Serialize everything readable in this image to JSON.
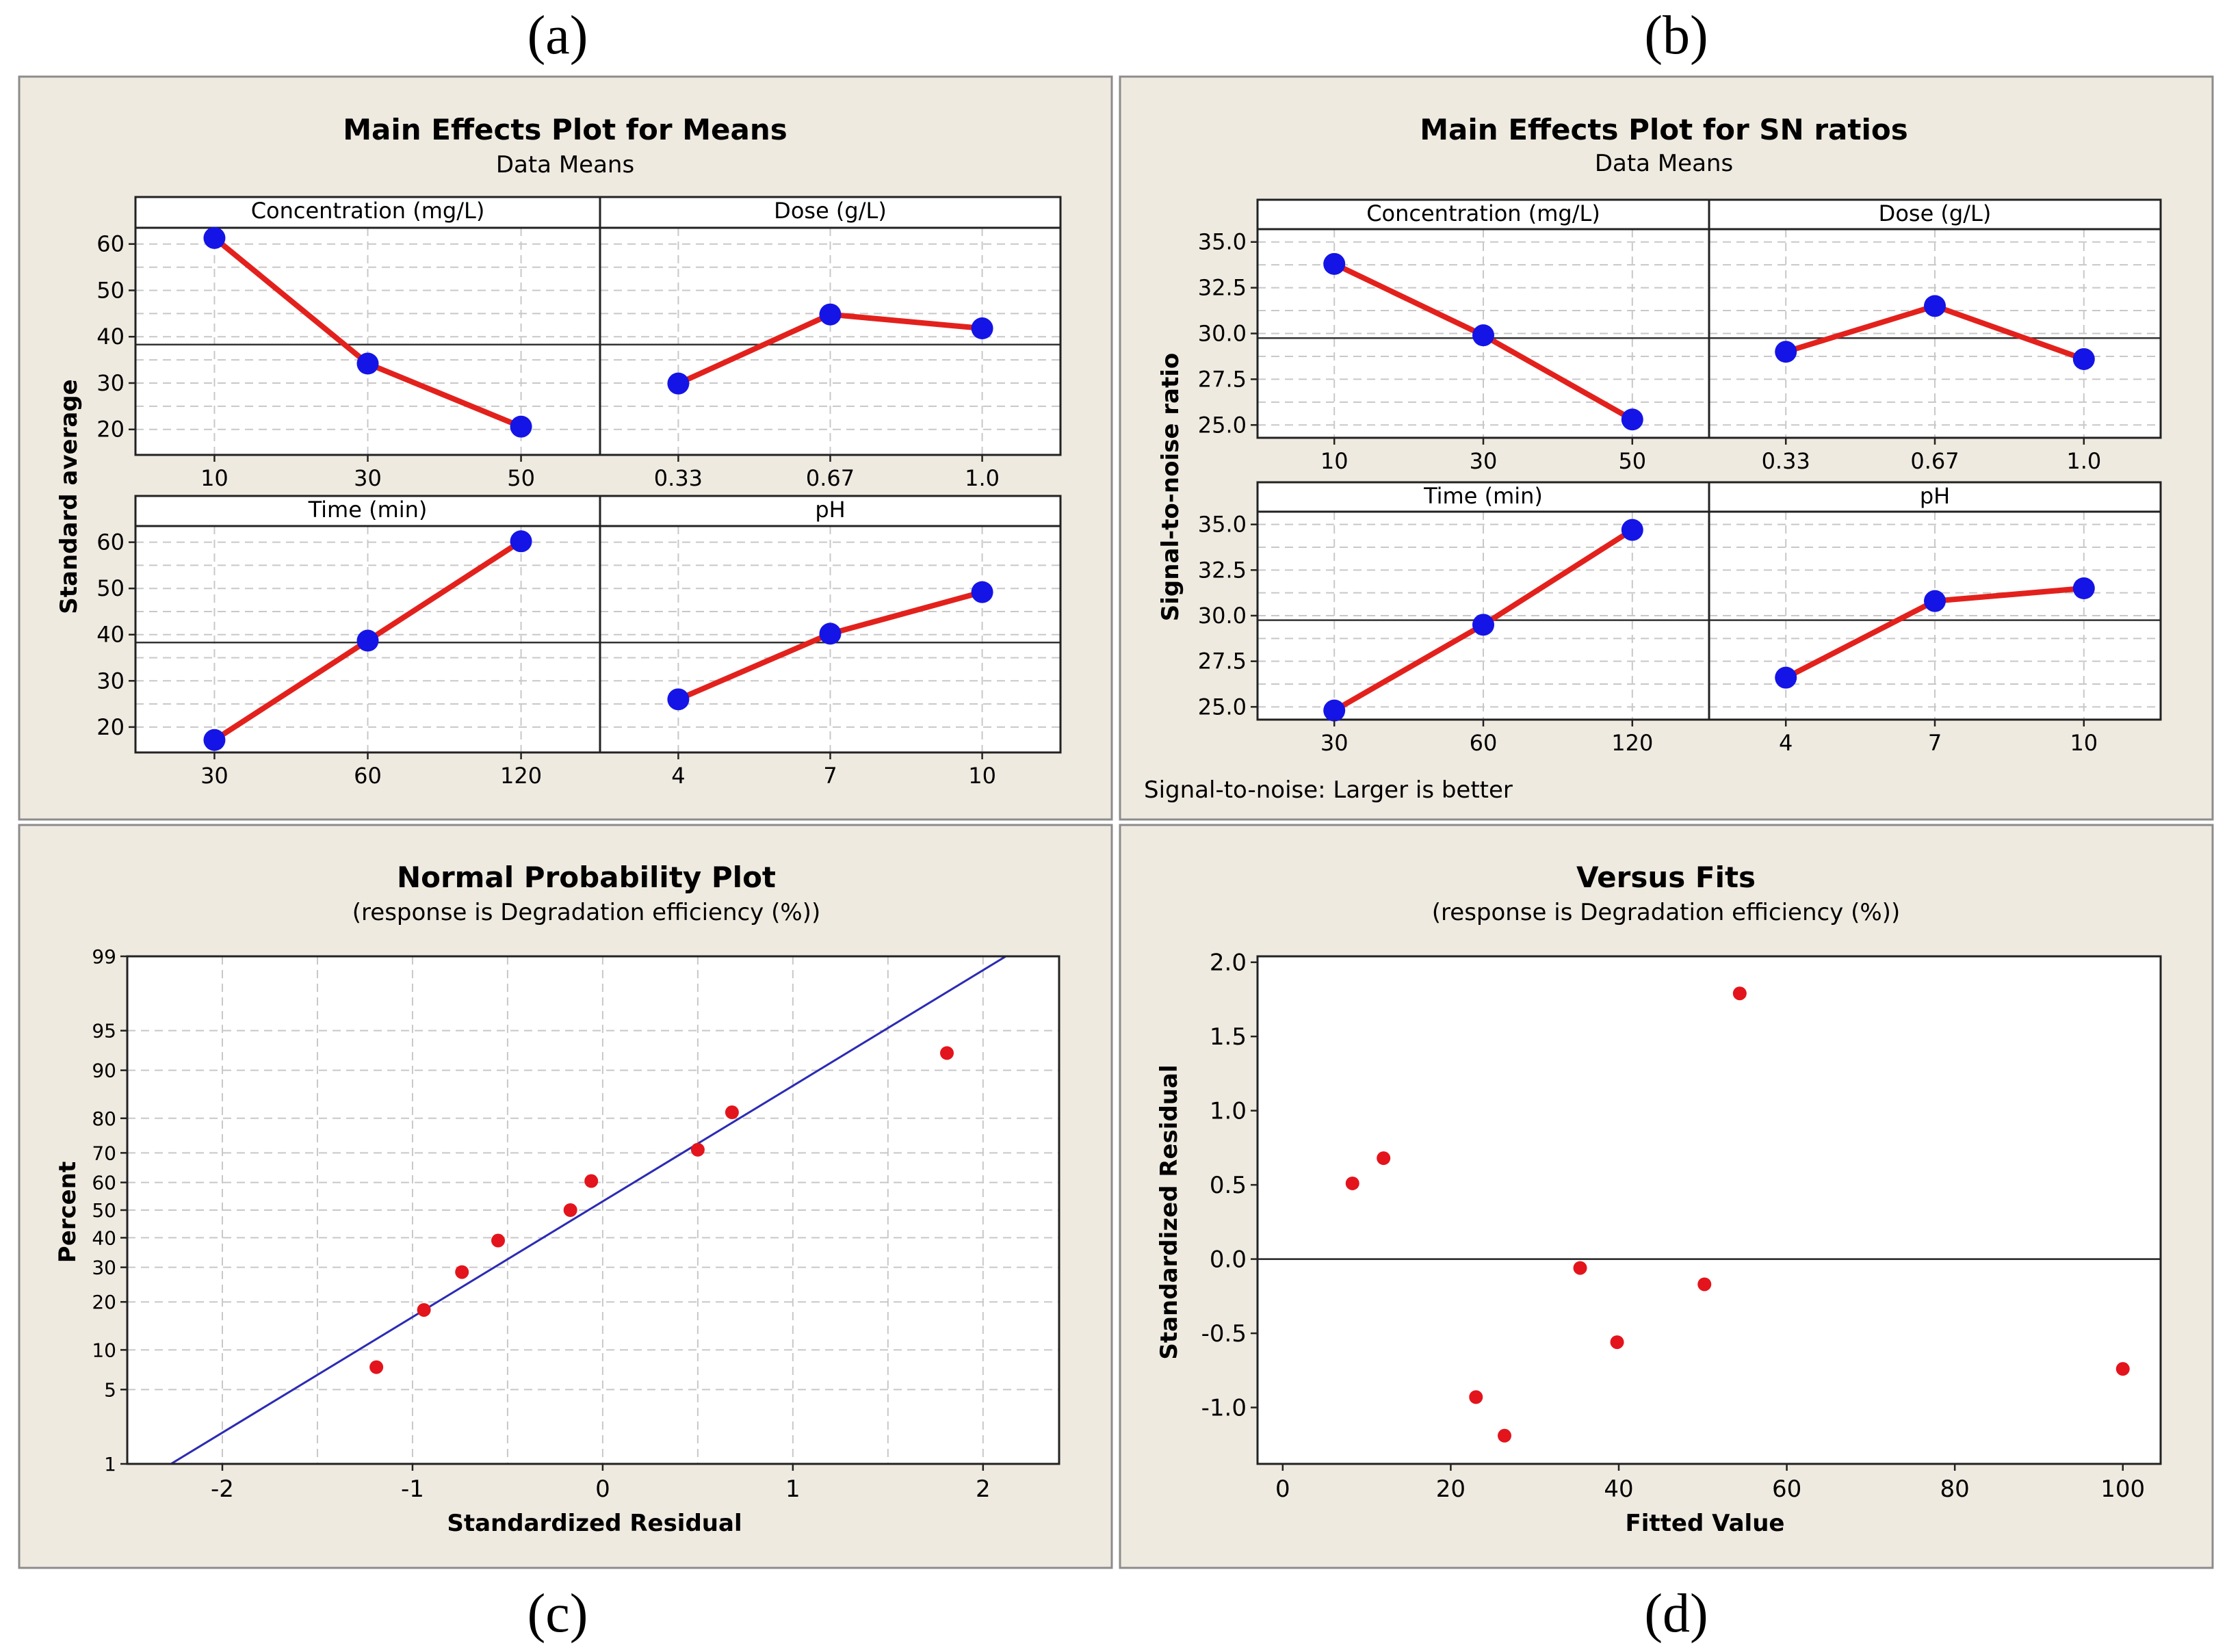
{
  "figure": {
    "panel_letters": [
      "(a)",
      "(b)",
      "(c)",
      "(d)"
    ],
    "colors": {
      "panel_bg": "#efeae0",
      "panel_border": "#8c8c8c",
      "plot_bg": "#ffffff",
      "grid": "#c8c8c8",
      "line_red": "#e3211c",
      "point_blue": "#1414e6",
      "point_red": "#e3141c",
      "fit_line_blue": "#2b2bb5",
      "text": "#000000"
    }
  },
  "chart_data": [
    {
      "id": "a",
      "type": "line",
      "title": "Main Effects Plot for Means",
      "subtitle": "Data Means",
      "ylabel": "Standard average",
      "ylim": [
        14.5,
        63.5
      ],
      "yticks": [
        20,
        30,
        40,
        50,
        60
      ],
      "reference_line": 38.3,
      "factors": [
        {
          "name": "Concentration (mg/L)",
          "levels": [
            "10",
            "30",
            "50"
          ],
          "values": [
            61.3,
            34.2,
            20.6
          ]
        },
        {
          "name": "Dose (g/L)",
          "levels": [
            "0.33",
            "0.67",
            "1.0"
          ],
          "values": [
            29.9,
            44.8,
            41.8
          ]
        },
        {
          "name": "Time (min)",
          "levels": [
            "30",
            "60",
            "120"
          ],
          "values": [
            17.2,
            38.7,
            60.2
          ]
        },
        {
          "name": "pH",
          "levels": [
            "4",
            "7",
            "10"
          ],
          "values": [
            26.0,
            40.2,
            49.2
          ]
        }
      ]
    },
    {
      "id": "b",
      "type": "line",
      "title": "Main Effects Plot for SN ratios",
      "subtitle": "Data Means",
      "ylabel": "Signal-to-noise ratio",
      "ylim": [
        24.3,
        35.7
      ],
      "yticks": [
        25.0,
        27.5,
        30.0,
        32.5,
        35.0
      ],
      "ytick_labels": [
        "25.0",
        "27.5",
        "30.0",
        "32.5",
        "35.0"
      ],
      "reference_line": 29.75,
      "note": "Signal-to-noise: Larger is better",
      "factors": [
        {
          "name": "Concentration (mg/L)",
          "levels": [
            "10",
            "30",
            "50"
          ],
          "values": [
            33.8,
            29.9,
            25.3
          ]
        },
        {
          "name": "Dose (g/L)",
          "levels": [
            "0.33",
            "0.67",
            "1.0"
          ],
          "values": [
            29.0,
            31.5,
            28.6
          ]
        },
        {
          "name": "Time (min)",
          "levels": [
            "30",
            "60",
            "120"
          ],
          "values": [
            24.8,
            29.5,
            34.7
          ]
        },
        {
          "name": "pH",
          "levels": [
            "4",
            "7",
            "10"
          ],
          "values": [
            26.6,
            30.8,
            31.5
          ]
        }
      ]
    },
    {
      "id": "c",
      "type": "scatter",
      "title": "Normal Probability Plot",
      "subtitle": "(response is Degradation efficiency (%))",
      "xlabel": "Standardized Residual",
      "ylabel": "Percent",
      "xlim": [
        -2.5,
        2.4
      ],
      "xticks": [
        -2,
        -1,
        0,
        1,
        2
      ],
      "yticks": [
        1,
        5,
        10,
        20,
        30,
        40,
        50,
        60,
        70,
        80,
        90,
        95,
        99
      ],
      "fit_line": {
        "x": [
          -2.27,
          2.12
        ],
        "y": [
          1,
          99
        ]
      },
      "points": [
        {
          "x": -1.19,
          "y": 7.5
        },
        {
          "x": -0.94,
          "y": 18
        },
        {
          "x": -0.74,
          "y": 28.5
        },
        {
          "x": -0.55,
          "y": 39
        },
        {
          "x": -0.17,
          "y": 50
        },
        {
          "x": -0.06,
          "y": 60.5
        },
        {
          "x": 0.5,
          "y": 71
        },
        {
          "x": 0.68,
          "y": 81.5
        },
        {
          "x": 1.81,
          "y": 92.5
        }
      ]
    },
    {
      "id": "d",
      "type": "scatter",
      "title": "Versus Fits",
      "subtitle": "(response is Degradation efficiency (%))",
      "xlabel": "Fitted Value",
      "ylabel": "Standardized Residual",
      "xlim": [
        -3,
        104.5
      ],
      "ylim": [
        -1.38,
        2.04
      ],
      "xticks": [
        0,
        20,
        40,
        60,
        80,
        100
      ],
      "yticks": [
        -1.0,
        -0.5,
        0.0,
        0.5,
        1.0,
        1.5,
        2.0
      ],
      "ytick_labels": [
        "-1.0",
        "-0.5",
        "0.0",
        "0.5",
        "1.0",
        "1.5",
        "2.0"
      ],
      "zero_line": 0,
      "points": [
        {
          "x": 8.3,
          "y": 0.51
        },
        {
          "x": 12.0,
          "y": 0.68
        },
        {
          "x": 23.0,
          "y": -0.93
        },
        {
          "x": 26.4,
          "y": -1.19
        },
        {
          "x": 35.4,
          "y": -0.06
        },
        {
          "x": 39.8,
          "y": -0.56
        },
        {
          "x": 50.2,
          "y": -0.17
        },
        {
          "x": 54.4,
          "y": 1.79
        },
        {
          "x": 100.0,
          "y": -0.74
        }
      ]
    }
  ]
}
